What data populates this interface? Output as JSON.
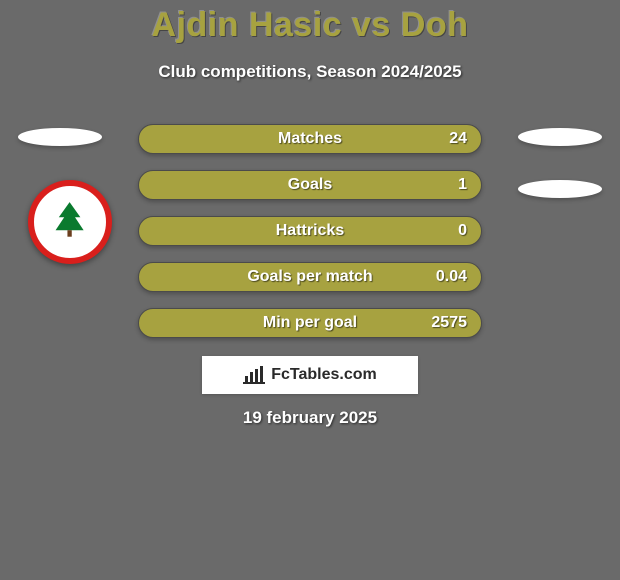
{
  "background_color": "#6a6a6a",
  "title": {
    "text": "Ajdin Hasic vs Doh",
    "color": "#a7a240",
    "fontsize": 34
  },
  "subtitle": {
    "text": "Club competitions, Season 2024/2025",
    "color": "#ffffff",
    "fontsize": 17
  },
  "club_logo": {
    "border_color": "#d91f1c",
    "inner_bg": "#ffffff",
    "tree_color": "#0a7a2e"
  },
  "bars": {
    "bar_color": "#a7a240",
    "border_color": "#4b4b4b",
    "label_color": "#ffffff",
    "value_color": "#ffffff",
    "fontsize": 16,
    "height": 30,
    "gap": 16,
    "radius": 15,
    "items": [
      {
        "label": "Matches",
        "value": "24"
      },
      {
        "label": "Goals",
        "value": "1"
      },
      {
        "label": "Hattricks",
        "value": "0"
      },
      {
        "label": "Goals per match",
        "value": "0.04"
      },
      {
        "label": "Min per goal",
        "value": "2575"
      }
    ]
  },
  "brand": {
    "text": "FcTables.com",
    "bg": "#ffffff",
    "text_color": "#2a2a2a",
    "icon_color": "#2a2a2a"
  },
  "date": {
    "text": "19 february 2025",
    "color": "#ffffff",
    "fontsize": 17
  },
  "ellipse_color": "#ffffff"
}
